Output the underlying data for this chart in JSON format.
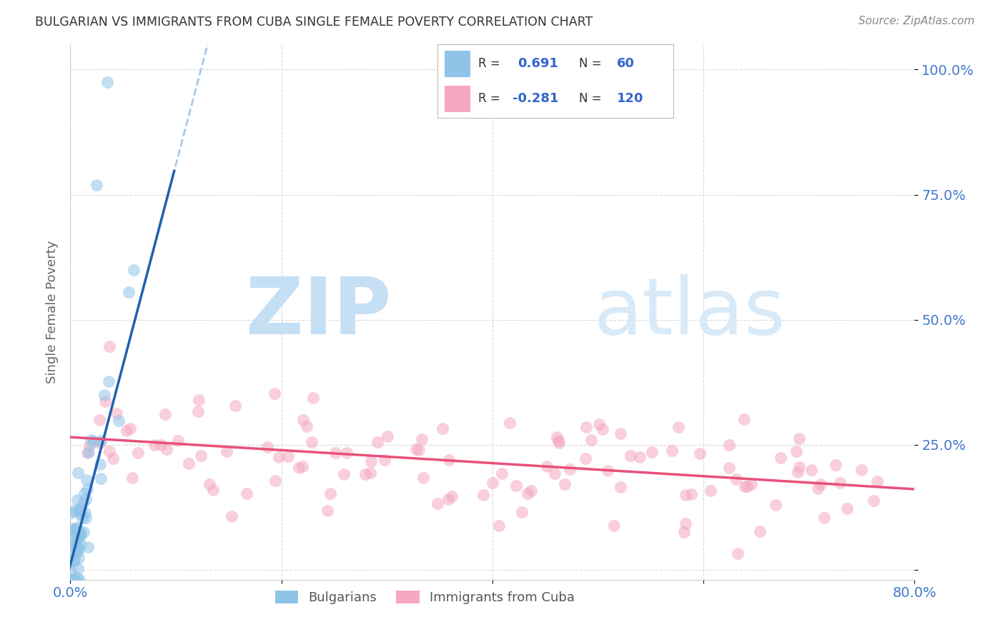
{
  "title": "BULGARIAN VS IMMIGRANTS FROM CUBA SINGLE FEMALE POVERTY CORRELATION CHART",
  "source": "Source: ZipAtlas.com",
  "ylabel": "Single Female Poverty",
  "legend_label1": "Bulgarians",
  "legend_label2": "Immigrants from Cuba",
  "r1": "0.691",
  "n1": "60",
  "r2": "-0.281",
  "n2": "120",
  "color_blue": "#8fc4e8",
  "color_pink": "#f5a8c0",
  "color_blue_line": "#2060b0",
  "color_pink_line": "#e8507a",
  "color_dashed": "#a8c8e8",
  "watermark_zip": "ZIP",
  "watermark_atlas": "atlas",
  "xlim": [
    0.0,
    0.8
  ],
  "ylim": [
    -0.02,
    1.05
  ],
  "ytick_vals": [
    0.0,
    0.25,
    0.5,
    0.75,
    1.0
  ],
  "ytick_labels": [
    "",
    "25.0%",
    "50.0%",
    "75.0%",
    "100.0%"
  ],
  "xtick_vals": [
    0.0,
    0.2,
    0.4,
    0.6,
    0.8
  ],
  "xtick_labels": [
    "0.0%",
    "",
    "",
    "",
    "80.0%"
  ],
  "bg_color": "#ffffff",
  "grid_color": "#d8d8d8",
  "tick_color": "#4477cc",
  "title_color": "#333333",
  "source_color": "#888888",
  "ylabel_color": "#666666",
  "legend_text_color": "#333333",
  "legend_val_color": "#3366cc",
  "seed": 7
}
